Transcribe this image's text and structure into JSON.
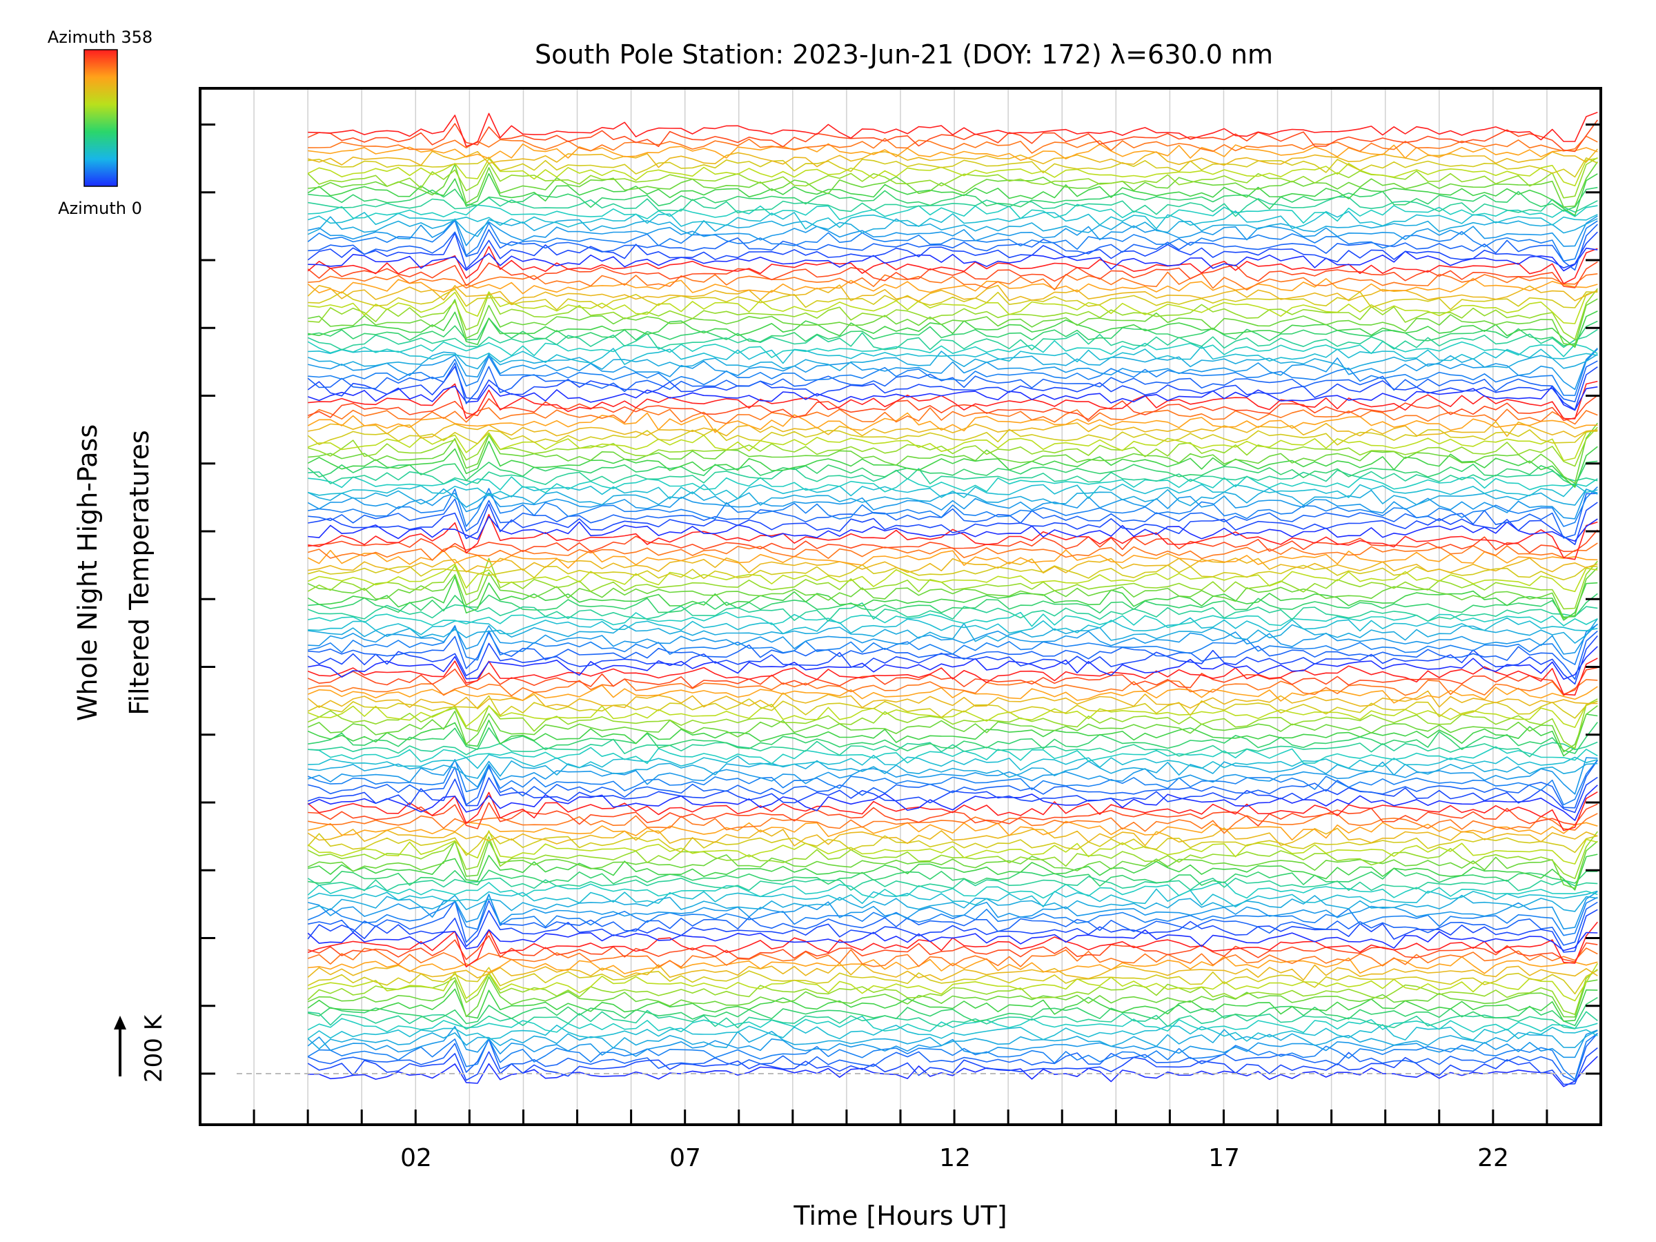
{
  "chart_data": {
    "type": "line",
    "title": "South Pole Station: 2023-Jun-21 (DOY: 172) λ=630.0 nm",
    "xlabel": "Time [Hours UT]",
    "ylabel_line1": "Whole Night High-Pass",
    "ylabel_line2": "Filtered Temperatures",
    "scale_label": "200 K",
    "x_ticks": [
      "02",
      "07",
      "12",
      "17",
      "22"
    ],
    "x_tick_values": [
      2,
      7,
      12,
      17,
      22
    ],
    "xlim": [
      -2,
      24
    ],
    "data_start_hour": 0,
    "colorbar": {
      "max_label": "Azimuth 358",
      "min_label": "Azimuth 0",
      "min_value": 0,
      "max_value": 358
    },
    "stack": {
      "blocks": 7,
      "traces_per_block": 20,
      "temperature_scale_K": 200,
      "offset_per_block_K": 200
    },
    "series_note": "Stacked high-pass filtered temperature traces per look direction; color encodes azimuth (0 blue → 358 red).",
    "colors": {
      "azimuth_0": "#1b2cff",
      "azimuth_mid": "#3cd24a",
      "azimuth_358": "#ff1e1e",
      "grid": "#d0d0d0",
      "axis": "#000000"
    }
  }
}
